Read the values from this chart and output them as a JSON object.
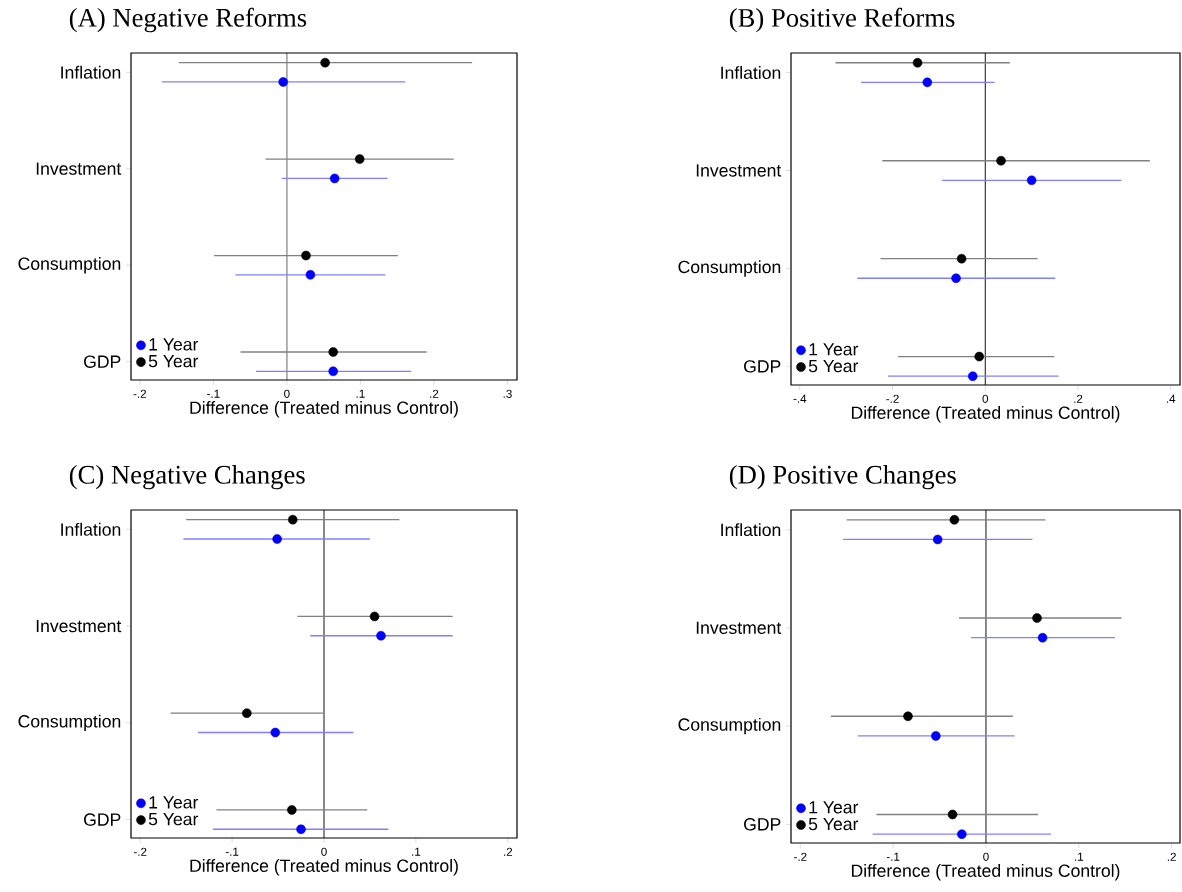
{
  "chart_data": [
    {
      "type": "scatter",
      "orientation": "horizontal",
      "title": "(A) Negative Reforms",
      "xlabel": "Difference (Treated minus Control)",
      "categories": [
        "Inflation",
        "Investment",
        "Consumption",
        "GDP"
      ],
      "series": [
        {
          "name": "1 Year",
          "color": "#0000ff",
          "values": [
            -0.005,
            0.065,
            0.032,
            0.063
          ],
          "errors": [
            [
              -0.17,
              0.161
            ],
            [
              -0.007,
              0.137
            ],
            [
              -0.07,
              0.134
            ],
            [
              -0.042,
              0.169
            ]
          ]
        },
        {
          "name": "5 Year",
          "color": "#000000",
          "values": [
            0.052,
            0.099,
            0.026,
            0.063
          ],
          "errors": [
            [
              -0.147,
              0.252
            ],
            [
              -0.029,
              0.227
            ],
            [
              -0.099,
              0.151
            ],
            [
              -0.063,
              0.19
            ]
          ]
        }
      ],
      "xlim": [
        -0.212,
        0.313
      ],
      "xticks": [
        {
          "value": -0.2,
          "label": "-.2"
        },
        {
          "value": -0.1,
          "label": "-.1"
        },
        {
          "value": 0,
          "label": "0"
        },
        {
          "value": 0.1,
          "label": ".1"
        },
        {
          "value": 0.2,
          "label": ".2"
        },
        {
          "value": 0.3,
          "label": ".3"
        }
      ],
      "ref_lines": [
        {
          "axis": "x",
          "value": 0,
          "color": "#000000"
        }
      ],
      "legend": "bottom left",
      "marker": "circle"
    },
    {
      "type": "scatter",
      "orientation": "horizontal",
      "title": "(B) Positive Reforms",
      "xlabel": "Difference (Treated minus Control)",
      "categories": [
        "Inflation",
        "Investment",
        "Consumption",
        "GDP"
      ],
      "series": [
        {
          "name": "1 Year",
          "color": "#0000ff",
          "values": [
            -0.125,
            0.1,
            -0.063,
            -0.027
          ],
          "errors": [
            [
              -0.268,
              0.02
            ],
            [
              -0.093,
              0.294
            ],
            [
              -0.276,
              0.151
            ],
            [
              -0.21,
              0.158
            ]
          ]
        },
        {
          "name": "5 Year",
          "color": "#000000",
          "values": [
            -0.146,
            0.034,
            -0.051,
            -0.013
          ],
          "errors": [
            [
              -0.323,
              0.053
            ],
            [
              -0.222,
              0.355
            ],
            [
              -0.226,
              0.113
            ],
            [
              -0.188,
              0.149
            ]
          ]
        }
      ],
      "xlim": [
        -0.419,
        0.42
      ],
      "xticks": [
        {
          "value": -0.4,
          "label": "-.4"
        },
        {
          "value": -0.2,
          "label": "-.2"
        },
        {
          "value": 0,
          "label": "0"
        },
        {
          "value": 0.2,
          "label": ".2"
        },
        {
          "value": 0.4,
          "label": ".4"
        }
      ],
      "ref_lines": [
        {
          "axis": "x",
          "value": 0,
          "color": "#000000"
        }
      ],
      "legend": "bottom left",
      "marker": "circle"
    },
    {
      "type": "scatter",
      "orientation": "horizontal",
      "title": "(C) Negative Changes",
      "xlabel": "Difference (Treated minus Control)",
      "categories": [
        "Inflation",
        "Investment",
        "Consumption",
        "GDP"
      ],
      "series": [
        {
          "name": "1 Year",
          "color": "#0000ff",
          "values": [
            -0.051,
            0.062,
            -0.053,
            -0.025
          ],
          "errors": [
            [
              -0.153,
              0.05
            ],
            [
              -0.015,
              0.14
            ],
            [
              -0.137,
              0.032
            ],
            [
              -0.121,
              0.07
            ]
          ]
        },
        {
          "name": "5 Year",
          "color": "#000000",
          "values": [
            -0.034,
            0.055,
            -0.084,
            -0.035
          ],
          "errors": [
            [
              -0.15,
              0.082
            ],
            [
              -0.029,
              0.14
            ],
            [
              -0.167,
              -0.001
            ],
            [
              -0.117,
              0.047
            ]
          ]
        }
      ],
      "xlim": [
        -0.21,
        0.21
      ],
      "xticks": [
        {
          "value": -0.2,
          "label": "-.2"
        },
        {
          "value": -0.1,
          "label": "-.1"
        },
        {
          "value": 0,
          "label": "0"
        },
        {
          "value": 0.1,
          "label": ".1"
        },
        {
          "value": 0.2,
          "label": ".2"
        }
      ],
      "ref_lines": [
        {
          "axis": "x",
          "value": 0,
          "color": "#000000"
        }
      ],
      "legend": "bottom left",
      "marker": "circle"
    },
    {
      "type": "scatter",
      "orientation": "horizontal",
      "title": "(D) Positive Changes",
      "xlabel": "Difference (Treated minus Control)",
      "categories": [
        "Inflation",
        "Investment",
        "Consumption",
        "GDP"
      ],
      "series": [
        {
          "name": "1 Year",
          "color": "#0000ff",
          "values": [
            -0.052,
            0.061,
            -0.054,
            -0.026
          ],
          "errors": [
            [
              -0.154,
              0.05
            ],
            [
              -0.016,
              0.139
            ],
            [
              -0.138,
              0.031
            ],
            [
              -0.122,
              0.07
            ]
          ]
        },
        {
          "name": "5 Year",
          "color": "#000000",
          "values": [
            -0.034,
            0.055,
            -0.084,
            -0.036
          ],
          "errors": [
            [
              -0.15,
              0.064
            ],
            [
              -0.029,
              0.146
            ],
            [
              -0.167,
              0.029
            ],
            [
              -0.118,
              0.056
            ]
          ]
        }
      ],
      "xlim": [
        -0.21,
        0.209
      ],
      "xticks": [
        {
          "value": -0.2,
          "label": "-.2"
        },
        {
          "value": -0.1,
          "label": "-.1"
        },
        {
          "value": 0,
          "label": "0"
        },
        {
          "value": 0.1,
          "label": ".1"
        },
        {
          "value": 0.2,
          "label": ".2"
        }
      ],
      "ref_lines": [
        {
          "axis": "x",
          "value": 0,
          "color": "#000000"
        }
      ],
      "legend": "bottom left",
      "marker": "circle"
    }
  ]
}
